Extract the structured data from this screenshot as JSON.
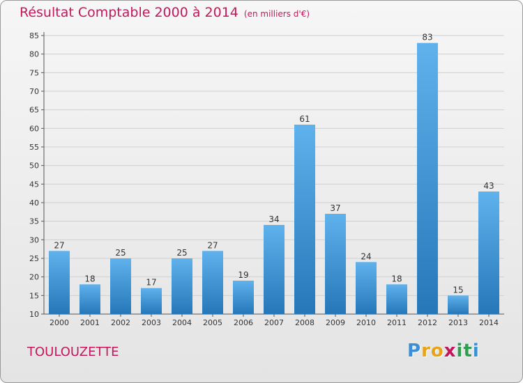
{
  "header": {
    "title": "Résultat Comptable 2000 à 2014",
    "subtitle": "(en milliers d'€)"
  },
  "footer": {
    "place": "TOULOUZETTE",
    "logo_letters": [
      "P",
      "r",
      "o",
      "x",
      "i",
      "t",
      "i"
    ],
    "logo_colors": [
      "#3a8fd6",
      "#e8a317",
      "#e8a317",
      "#c2185b",
      "#2e9e4f",
      "#2e9e4f",
      "#3a8fd6"
    ]
  },
  "chart_data": {
    "type": "bar",
    "title": "Résultat Comptable 2000 à 2014",
    "unit": "(en milliers d'€)",
    "categories": [
      "2000",
      "2001",
      "2002",
      "2003",
      "2004",
      "2005",
      "2006",
      "2007",
      "2008",
      "2009",
      "2010",
      "2011",
      "2012",
      "2013",
      "2014"
    ],
    "values": [
      27,
      18,
      25,
      17,
      25,
      27,
      19,
      34,
      61,
      37,
      24,
      18,
      83,
      15,
      43
    ],
    "ylim": [
      10,
      85
    ],
    "yticks": [
      10,
      15,
      20,
      25,
      30,
      35,
      40,
      45,
      50,
      55,
      60,
      65,
      70,
      75,
      80,
      85
    ],
    "grid": true,
    "bar_color": "#3a8fd6"
  }
}
